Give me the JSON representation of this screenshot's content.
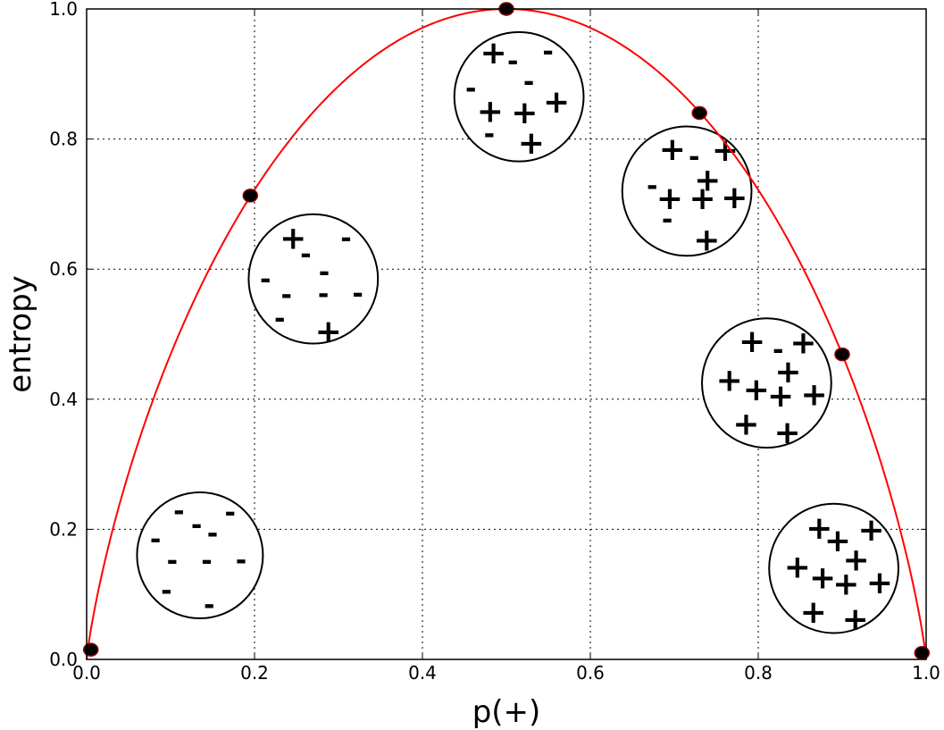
{
  "chart_data": {
    "type": "line",
    "title": "",
    "xlabel": "p(+)",
    "ylabel": "entropy",
    "xlim": [
      0.0,
      1.0
    ],
    "ylim": [
      0.0,
      1.0
    ],
    "xticks": [
      "0.0",
      "0.2",
      "0.4",
      "0.6",
      "0.8",
      "1.0"
    ],
    "yticks": [
      "0.0",
      "0.2",
      "0.4",
      "0.6",
      "0.8",
      "1.0"
    ],
    "grid": true,
    "colors": {
      "curve": "#ff0000",
      "markers": "#000000",
      "marker_edge": "#8b0000"
    },
    "curve": {
      "function": "binary entropy"
    },
    "markers": [
      {
        "x": 0.005,
        "y": 0.015
      },
      {
        "x": 0.195,
        "y": 0.713
      },
      {
        "x": 0.5,
        "y": 1.0
      },
      {
        "x": 0.73,
        "y": 0.84
      },
      {
        "x": 0.9,
        "y": 0.469
      },
      {
        "x": 0.995,
        "y": 0.01
      }
    ],
    "bags": [
      {
        "cx": 0.135,
        "cy": 0.16,
        "r": 0.075,
        "symbols": [
          {
            "s": "-",
            "dx": -0.025,
            "dy": 0.065
          },
          {
            "s": "-",
            "dx": 0.036,
            "dy": 0.063
          },
          {
            "s": "-",
            "dx": -0.004,
            "dy": 0.044
          },
          {
            "s": "-",
            "dx": 0.015,
            "dy": 0.031
          },
          {
            "s": "-",
            "dx": -0.053,
            "dy": 0.022
          },
          {
            "s": "-",
            "dx": -0.033,
            "dy": -0.011
          },
          {
            "s": "-",
            "dx": 0.008,
            "dy": -0.011
          },
          {
            "s": "-",
            "dx": 0.049,
            "dy": -0.01
          },
          {
            "s": "-",
            "dx": -0.04,
            "dy": -0.057
          },
          {
            "s": "-",
            "dx": 0.011,
            "dy": -0.079
          }
        ]
      },
      {
        "cx": 0.27,
        "cy": 0.585,
        "r": 0.077,
        "symbols": [
          {
            "s": "+",
            "dx": -0.024,
            "dy": 0.063
          },
          {
            "s": "-",
            "dx": 0.039,
            "dy": 0.06
          },
          {
            "s": "-",
            "dx": -0.009,
            "dy": 0.035
          },
          {
            "s": "-",
            "dx": 0.013,
            "dy": 0.008
          },
          {
            "s": "-",
            "dx": -0.057,
            "dy": -0.003
          },
          {
            "s": "-",
            "dx": -0.032,
            "dy": -0.027
          },
          {
            "s": "-",
            "dx": 0.012,
            "dy": -0.026
          },
          {
            "s": "-",
            "dx": 0.053,
            "dy": -0.025
          },
          {
            "s": "-",
            "dx": -0.04,
            "dy": -0.064
          },
          {
            "s": "+",
            "dx": 0.018,
            "dy": -0.081
          }
        ]
      },
      {
        "cx": 0.515,
        "cy": 0.865,
        "r": 0.077,
        "symbols": [
          {
            "s": "+",
            "dx": 0.036,
            "dy": 0.068
          },
          {
            "s": "-",
            "dx": 0.101,
            "dy": 0.067
          },
          {
            "s": "-",
            "dx": 0.059,
            "dy": 0.052
          },
          {
            "s": "-",
            "dx": 0.078,
            "dy": 0.02
          },
          {
            "s": "-",
            "dx": 0.009,
            "dy": 0.01
          },
          {
            "s": "+",
            "dx": 0.111,
            "dy": -0.008
          },
          {
            "s": "+",
            "dx": 0.032,
            "dy": -0.022
          },
          {
            "s": "+",
            "dx": 0.073,
            "dy": -0.024
          },
          {
            "s": "-",
            "dx": 0.031,
            "dy": -0.06
          },
          {
            "s": "+",
            "dx": 0.081,
            "dy": -0.071
          }
        ]
      },
      {
        "cx": 0.715,
        "cy": 0.72,
        "r": 0.077,
        "symbols": [
          {
            "s": "+",
            "dx": 0.049,
            "dy": 0.064
          },
          {
            "s": "+",
            "dx": 0.112,
            "dy": 0.063
          },
          {
            "s": "-",
            "dx": 0.075,
            "dy": 0.05
          },
          {
            "s": "+",
            "dx": 0.091,
            "dy": 0.017
          },
          {
            "s": "-",
            "dx": 0.025,
            "dy": 0.005
          },
          {
            "s": "+",
            "dx": 0.046,
            "dy": -0.011
          },
          {
            "s": "+",
            "dx": 0.085,
            "dy": -0.011
          },
          {
            "s": "+",
            "dx": 0.123,
            "dy": -0.01
          },
          {
            "s": "-",
            "dx": 0.043,
            "dy": -0.046
          },
          {
            "s": "+",
            "dx": 0.09,
            "dy": -0.075
          }
        ]
      },
      {
        "cx": 0.81,
        "cy": 0.425,
        "r": 0.077,
        "symbols": [
          {
            "s": "+",
            "dx": 0.049,
            "dy": 0.064
          },
          {
            "s": "+",
            "dx": 0.11,
            "dy": 0.062
          },
          {
            "s": "-",
            "dx": 0.08,
            "dy": 0.048
          },
          {
            "s": "+",
            "dx": 0.092,
            "dy": 0.017
          },
          {
            "s": "+",
            "dx": 0.022,
            "dy": 0.004
          },
          {
            "s": "+",
            "dx": 0.054,
            "dy": -0.01
          },
          {
            "s": "+",
            "dx": 0.083,
            "dy": -0.02
          },
          {
            "s": "+",
            "dx": 0.123,
            "dy": -0.018
          },
          {
            "s": "+",
            "dx": 0.042,
            "dy": -0.063
          },
          {
            "s": "+",
            "dx": 0.091,
            "dy": -0.076
          }
        ]
      },
      {
        "cx": 0.89,
        "cy": 0.14,
        "r": 0.077,
        "symbols": [
          {
            "s": "+",
            "dx": 0.049,
            "dy": 0.062
          },
          {
            "s": "+",
            "dx": 0.111,
            "dy": 0.059
          },
          {
            "s": "+",
            "dx": 0.071,
            "dy": 0.043
          },
          {
            "s": "+",
            "dx": 0.093,
            "dy": 0.013
          },
          {
            "s": "+",
            "dx": 0.023,
            "dy": 0.002
          },
          {
            "s": "+",
            "dx": 0.053,
            "dy": -0.014
          },
          {
            "s": "+",
            "dx": 0.081,
            "dy": -0.024
          },
          {
            "s": "+",
            "dx": 0.121,
            "dy": -0.022
          },
          {
            "s": "+",
            "dx": 0.042,
            "dy": -0.067
          },
          {
            "s": "+",
            "dx": 0.092,
            "dy": -0.078
          }
        ]
      }
    ]
  }
}
